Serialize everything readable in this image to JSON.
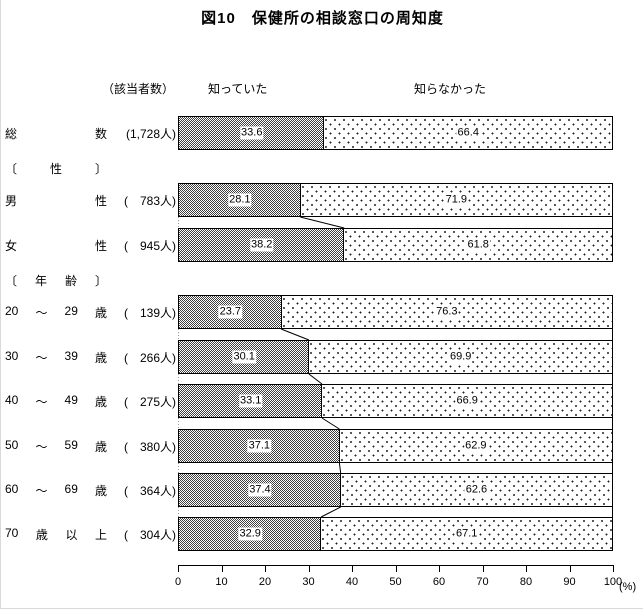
{
  "chart_data": {
    "type": "bar",
    "orientation": "horizontal",
    "stacked": true,
    "title": "図10　保健所の相談窓口の周知度",
    "respondents_header": "（該当者数）",
    "legend_position": "top",
    "grid": false,
    "series": [
      {
        "name": "知っていた",
        "pattern": "dark-checker"
      },
      {
        "name": "知らなかった",
        "pattern": "white-dots"
      }
    ],
    "rows": [
      {
        "kind": "bar",
        "group": 0,
        "label_tokens": [
          "総",
          "数"
        ],
        "count": "(1,728人)",
        "values": [
          33.6,
          66.4
        ]
      },
      {
        "kind": "header",
        "label_tokens": [
          "〔",
          "性",
          "〕"
        ]
      },
      {
        "kind": "bar",
        "group": 1,
        "label_tokens": [
          "男",
          "性"
        ],
        "count": "(　783人)",
        "values": [
          28.1,
          71.9
        ]
      },
      {
        "kind": "bar",
        "group": 1,
        "label_tokens": [
          "女",
          "性"
        ],
        "count": "(　945人)",
        "values": [
          38.2,
          61.8
        ]
      },
      {
        "kind": "header",
        "label_tokens": [
          "〔",
          "年",
          "齢",
          "〕"
        ]
      },
      {
        "kind": "bar",
        "group": 2,
        "label_tokens": [
          "20",
          "〜",
          "29",
          "歳"
        ],
        "count": "(　139人)",
        "values": [
          23.7,
          76.3
        ]
      },
      {
        "kind": "bar",
        "group": 2,
        "label_tokens": [
          "30",
          "〜",
          "39",
          "歳"
        ],
        "count": "(　266人)",
        "values": [
          30.1,
          69.9
        ]
      },
      {
        "kind": "bar",
        "group": 2,
        "label_tokens": [
          "40",
          "〜",
          "49",
          "歳"
        ],
        "count": "(　275人)",
        "values": [
          33.1,
          66.9
        ]
      },
      {
        "kind": "bar",
        "group": 2,
        "label_tokens": [
          "50",
          "〜",
          "59",
          "歳"
        ],
        "count": "(　380人)",
        "values": [
          37.1,
          62.9
        ]
      },
      {
        "kind": "bar",
        "group": 2,
        "label_tokens": [
          "60",
          "〜",
          "69",
          "歳"
        ],
        "count": "(　364人)",
        "values": [
          37.4,
          62.6
        ]
      },
      {
        "kind": "bar",
        "group": 2,
        "label_tokens": [
          "70",
          "歳",
          "以",
          "上"
        ],
        "count": "(　304人)",
        "values": [
          32.9,
          67.1
        ]
      }
    ],
    "axis": {
      "min": 0,
      "max": 100,
      "tick_step": 10,
      "ticks": [
        0,
        10,
        20,
        30,
        40,
        50,
        60,
        70,
        80,
        90,
        100
      ]
    },
    "xlabel_unit": "(%)"
  }
}
